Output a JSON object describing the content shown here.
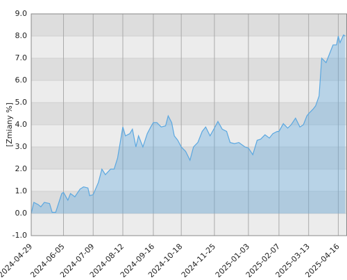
{
  "chart_data": {
    "type": "area",
    "y_label": "[Zmiany %]",
    "x": [
      "2024-04-29",
      "2024-05-02",
      "2024-05-07",
      "2024-05-10",
      "2024-05-14",
      "2024-05-20",
      "2024-05-23",
      "2024-05-27",
      "2024-06-03",
      "2024-06-05",
      "2024-06-10",
      "2024-06-13",
      "2024-06-18",
      "2024-06-24",
      "2024-06-28",
      "2024-07-03",
      "2024-07-05",
      "2024-07-09",
      "2024-07-15",
      "2024-07-19",
      "2024-07-23",
      "2024-07-29",
      "2024-08-02",
      "2024-08-06",
      "2024-08-09",
      "2024-08-12",
      "2024-08-15",
      "2024-08-20",
      "2024-08-23",
      "2024-08-27",
      "2024-08-30",
      "2024-09-04",
      "2024-09-09",
      "2024-09-13",
      "2024-09-16",
      "2024-09-20",
      "2024-09-25",
      "2024-09-30",
      "2024-10-03",
      "2024-10-07",
      "2024-10-10",
      "2024-10-14",
      "2024-10-18",
      "2024-10-23",
      "2024-10-28",
      "2024-11-01",
      "2024-11-06",
      "2024-11-11",
      "2024-11-15",
      "2024-11-20",
      "2024-11-25",
      "2024-11-29",
      "2024-12-04",
      "2024-12-09",
      "2024-12-13",
      "2024-12-18",
      "2024-12-23",
      "2024-12-30",
      "2025-01-03",
      "2025-01-08",
      "2025-01-13",
      "2025-01-17",
      "2025-01-22",
      "2025-01-27",
      "2025-01-31",
      "2025-02-05",
      "2025-02-07",
      "2025-02-12",
      "2025-02-17",
      "2025-02-21",
      "2025-02-26",
      "2025-03-03",
      "2025-03-07",
      "2025-03-11",
      "2025-03-13",
      "2025-03-18",
      "2025-03-21",
      "2025-03-25",
      "2025-03-28",
      "2025-04-02",
      "2025-04-07",
      "2025-04-10",
      "2025-04-14",
      "2025-04-16",
      "2025-04-18",
      "2025-04-22",
      "2025-04-24"
    ],
    "series": [
      {
        "color": "#5aa7e0",
        "values": [
          0.0,
          0.5,
          0.4,
          0.3,
          0.5,
          0.45,
          0.05,
          0.05,
          0.9,
          0.95,
          0.6,
          0.9,
          0.75,
          1.1,
          1.2,
          1.15,
          0.8,
          0.85,
          1.4,
          2.0,
          1.75,
          2.0,
          2.0,
          2.5,
          3.2,
          3.9,
          3.5,
          3.6,
          3.8,
          3.0,
          3.5,
          3.0,
          3.6,
          3.9,
          4.1,
          4.1,
          3.9,
          3.95,
          4.4,
          4.1,
          3.5,
          3.3,
          3.0,
          2.8,
          2.4,
          3.0,
          3.2,
          3.7,
          3.9,
          3.5,
          3.85,
          4.15,
          3.8,
          3.7,
          3.2,
          3.15,
          3.2,
          3.0,
          2.95,
          2.65,
          3.3,
          3.35,
          3.55,
          3.4,
          3.6,
          3.7,
          3.7,
          4.05,
          3.85,
          4.0,
          4.3,
          3.9,
          4.0,
          4.4,
          4.5,
          4.7,
          4.85,
          5.3,
          7.0,
          6.8,
          7.3,
          7.6,
          7.6,
          8.0,
          7.7,
          8.05,
          8.0
        ]
      }
    ],
    "xlim": [
      "2024-04-29",
      "2025-04-26"
    ],
    "xticks": [
      "2024-04-29",
      "2024-06-05",
      "2024-07-09",
      "2024-08-12",
      "2024-09-16",
      "2024-10-18",
      "2024-11-25",
      "2025-01-03",
      "2025-02-07",
      "2025-03-13",
      "2025-04-16"
    ],
    "ylim": [
      -1,
      9
    ],
    "yticks": [
      {
        "value": -1,
        "label": "-1.0"
      },
      {
        "value": 0,
        "label": "0.0"
      },
      {
        "value": 1,
        "label": "1.0"
      },
      {
        "value": 2,
        "label": "2.0"
      },
      {
        "value": 3,
        "label": "3.0"
      },
      {
        "value": 4,
        "label": "4.0"
      },
      {
        "value": 5,
        "label": "5.0"
      },
      {
        "value": 6,
        "label": "6.0"
      },
      {
        "value": 7,
        "label": "7.0"
      },
      {
        "value": 8,
        "label": "8.0"
      },
      {
        "value": 9,
        "label": "9.0"
      }
    ],
    "grid": true
  }
}
